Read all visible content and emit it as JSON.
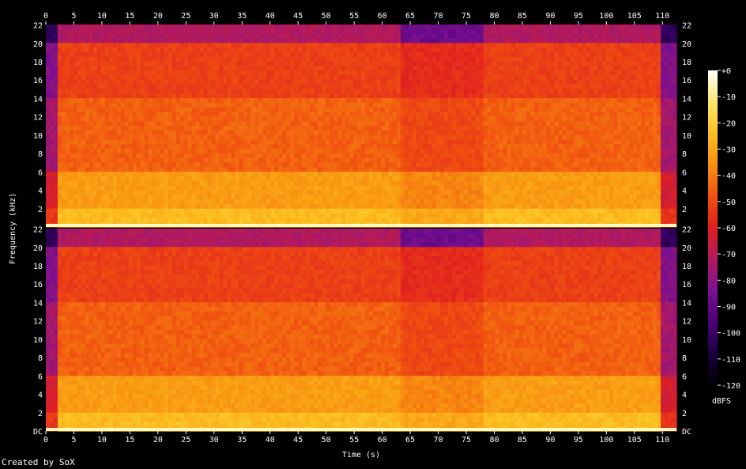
{
  "chart_data": {
    "type": "heatmap",
    "title": "",
    "xlabel": "Time (s)",
    "ylabel": "Frequency (kHz)",
    "colorbar_label": "dBFS",
    "x_ticks": [
      "0",
      "5",
      "10",
      "15",
      "20",
      "25",
      "30",
      "35",
      "40",
      "45",
      "50",
      "55",
      "60",
      "65",
      "70",
      "75",
      "80",
      "85",
      "90",
      "95",
      "100",
      "105",
      "110"
    ],
    "y_ticks_top": [
      "2",
      "4",
      "6",
      "8",
      "10",
      "12",
      "14",
      "16",
      "18",
      "20",
      "22"
    ],
    "y_ticks_bottom": [
      "DC",
      "2",
      "4",
      "6",
      "8",
      "10",
      "12",
      "14",
      "16",
      "18",
      "20",
      "22"
    ],
    "colorbar_ticks": [
      "+0",
      "-10",
      "-20",
      "-30",
      "-40",
      "-50",
      "-60",
      "-70",
      "-80",
      "-90",
      "-100",
      "-110",
      "-120"
    ],
    "xlim": [
      0,
      112.5
    ],
    "ylim_khz": [
      0,
      22.05
    ],
    "zlim_dbfs": [
      -120,
      0
    ],
    "channels": 2,
    "colormap": [
      "#000000",
      "#1a0040",
      "#4a0078",
      "#7a1090",
      "#b01a60",
      "#e02020",
      "#f05010",
      "#f89010",
      "#fcc020",
      "#fce870",
      "#ffffff"
    ],
    "approx_level_profile": [
      {
        "band_khz": [
          0,
          2
        ],
        "dbfs": -25
      },
      {
        "band_khz": [
          2,
          6
        ],
        "dbfs": -33
      },
      {
        "band_khz": [
          6,
          14
        ],
        "dbfs": -45
      },
      {
        "band_khz": [
          14,
          20
        ],
        "dbfs": -52
      },
      {
        "band_khz": [
          20,
          22.05
        ],
        "dbfs": -72
      }
    ]
  },
  "footer": "Created by SoX"
}
